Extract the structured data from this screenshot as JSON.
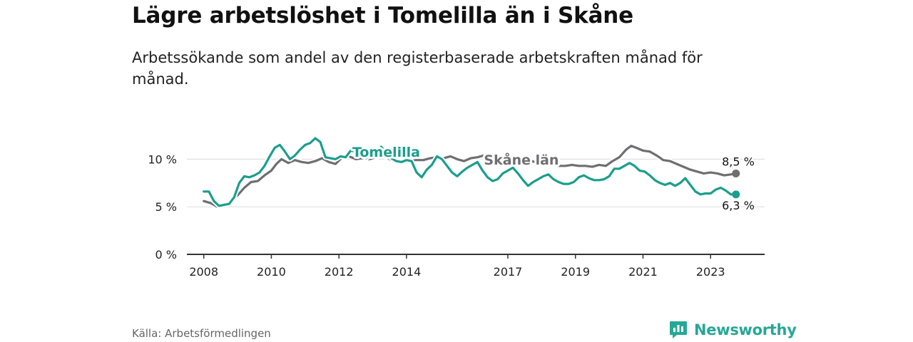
{
  "title": "Lägre arbetslöshet i Tomelilla än i Skåne",
  "subtitle": "Arbetssökande som andel av den registerbaserade arbetskraften månad för månad.",
  "source": "Källa: Arbetsförmedlingen",
  "brand": {
    "name": "Newsworthy",
    "icon": "newsworthy-logo-icon",
    "color": "#27a797"
  },
  "chart_data": {
    "type": "line",
    "title": "Lägre arbetslöshet i Tomelilla än i Skåne",
    "xlabel": "",
    "ylabel": "",
    "xlim": [
      2007.5,
      2024.6
    ],
    "ylim": [
      0,
      12.5
    ],
    "grid": true,
    "x_ticks": [
      {
        "value": 2008,
        "label": "2008"
      },
      {
        "value": 2010,
        "label": "2010"
      },
      {
        "value": 2012,
        "label": "2012"
      },
      {
        "value": 2014,
        "label": "2014"
      },
      {
        "value": 2017,
        "label": "2017"
      },
      {
        "value": 2019,
        "label": "2019"
      },
      {
        "value": 2021,
        "label": "2021"
      },
      {
        "value": 2023,
        "label": "2023"
      }
    ],
    "y_ticks": [
      {
        "value": 0,
        "label": "0 %"
      },
      {
        "value": 5,
        "label": "5 %"
      },
      {
        "value": 10,
        "label": "10 %"
      }
    ],
    "series": [
      {
        "name": "Skåne län",
        "color": "#6e6e73",
        "label_at": 2017.4,
        "end_label": "8,5 %",
        "points": [
          [
            2008.0,
            5.6
          ],
          [
            2008.2,
            5.4
          ],
          [
            2008.4,
            5.0
          ],
          [
            2008.6,
            5.2
          ],
          [
            2008.8,
            5.6
          ],
          [
            2009.0,
            6.2
          ],
          [
            2009.2,
            7.0
          ],
          [
            2009.4,
            7.6
          ],
          [
            2009.6,
            7.7
          ],
          [
            2009.8,
            8.3
          ],
          [
            2010.0,
            8.8
          ],
          [
            2010.15,
            9.5
          ],
          [
            2010.3,
            10.0
          ],
          [
            2010.5,
            9.6
          ],
          [
            2010.7,
            9.9
          ],
          [
            2010.9,
            9.7
          ],
          [
            2011.1,
            9.6
          ],
          [
            2011.3,
            9.8
          ],
          [
            2011.5,
            10.1
          ],
          [
            2011.7,
            9.7
          ],
          [
            2011.9,
            9.5
          ],
          [
            2012.1,
            10.2
          ],
          [
            2012.3,
            10.3
          ],
          [
            2012.5,
            10.0
          ],
          [
            2012.7,
            10.1
          ],
          [
            2012.9,
            10.0
          ],
          [
            2013.1,
            10.2
          ],
          [
            2013.3,
            10.4
          ],
          [
            2013.5,
            10.0
          ],
          [
            2013.7,
            9.7
          ],
          [
            2013.9,
            9.9
          ],
          [
            2014.1,
            9.9
          ],
          [
            2014.3,
            9.9
          ],
          [
            2014.5,
            9.9
          ],
          [
            2014.7,
            10.1
          ],
          [
            2014.9,
            10.2
          ],
          [
            2015.1,
            10.1
          ],
          [
            2015.3,
            10.3
          ],
          [
            2015.5,
            10.0
          ],
          [
            2015.7,
            9.8
          ],
          [
            2015.9,
            10.1
          ],
          [
            2016.1,
            10.2
          ],
          [
            2016.3,
            10.4
          ],
          [
            2016.5,
            10.2
          ],
          [
            2016.7,
            9.7
          ],
          [
            2016.9,
            9.9
          ],
          [
            2017.1,
            10.1
          ],
          [
            2017.3,
            10.0
          ],
          [
            2017.5,
            9.8
          ],
          [
            2017.7,
            9.8
          ],
          [
            2017.9,
            9.6
          ],
          [
            2018.1,
            9.7
          ],
          [
            2018.3,
            9.5
          ],
          [
            2018.5,
            9.3
          ],
          [
            2018.7,
            9.3
          ],
          [
            2018.9,
            9.4
          ],
          [
            2019.1,
            9.3
          ],
          [
            2019.3,
            9.3
          ],
          [
            2019.5,
            9.2
          ],
          [
            2019.7,
            9.4
          ],
          [
            2019.9,
            9.3
          ],
          [
            2020.1,
            9.8
          ],
          [
            2020.3,
            10.2
          ],
          [
            2020.5,
            11.0
          ],
          [
            2020.65,
            11.4
          ],
          [
            2020.8,
            11.2
          ],
          [
            2021.0,
            10.9
          ],
          [
            2021.2,
            10.8
          ],
          [
            2021.4,
            10.4
          ],
          [
            2021.6,
            9.9
          ],
          [
            2021.8,
            9.8
          ],
          [
            2022.0,
            9.5
          ],
          [
            2022.2,
            9.2
          ],
          [
            2022.4,
            8.9
          ],
          [
            2022.6,
            8.7
          ],
          [
            2022.8,
            8.5
          ],
          [
            2023.0,
            8.6
          ],
          [
            2023.2,
            8.5
          ],
          [
            2023.4,
            8.3
          ],
          [
            2023.6,
            8.4
          ],
          [
            2023.75,
            8.5
          ]
        ]
      },
      {
        "name": "Tomelilla",
        "color": "#1b9e8c",
        "label_at": 2013.4,
        "end_label": "6,3 %",
        "points": [
          [
            2008.0,
            6.6
          ],
          [
            2008.15,
            6.6
          ],
          [
            2008.3,
            5.6
          ],
          [
            2008.45,
            5.1
          ],
          [
            2008.6,
            5.2
          ],
          [
            2008.75,
            5.3
          ],
          [
            2008.9,
            6.0
          ],
          [
            2009.05,
            7.5
          ],
          [
            2009.2,
            8.2
          ],
          [
            2009.35,
            8.1
          ],
          [
            2009.5,
            8.3
          ],
          [
            2009.65,
            8.6
          ],
          [
            2009.8,
            9.3
          ],
          [
            2009.95,
            10.3
          ],
          [
            2010.1,
            11.2
          ],
          [
            2010.25,
            11.5
          ],
          [
            2010.4,
            10.8
          ],
          [
            2010.55,
            10.0
          ],
          [
            2010.7,
            10.4
          ],
          [
            2010.85,
            11.0
          ],
          [
            2011.0,
            11.5
          ],
          [
            2011.15,
            11.7
          ],
          [
            2011.3,
            12.2
          ],
          [
            2011.45,
            11.8
          ],
          [
            2011.6,
            10.2
          ],
          [
            2011.75,
            10.1
          ],
          [
            2011.9,
            10.0
          ],
          [
            2012.05,
            10.3
          ],
          [
            2012.2,
            10.2
          ],
          [
            2012.35,
            10.9
          ],
          [
            2012.5,
            10.8
          ],
          [
            2012.65,
            10.5
          ],
          [
            2012.8,
            10.1
          ],
          [
            2012.95,
            10.4
          ],
          [
            2013.1,
            10.6
          ],
          [
            2013.25,
            11.3
          ],
          [
            2013.4,
            10.7
          ],
          [
            2013.55,
            10.1
          ],
          [
            2013.7,
            9.8
          ],
          [
            2013.85,
            9.7
          ],
          [
            2014.0,
            9.9
          ],
          [
            2014.15,
            9.8
          ],
          [
            2014.3,
            8.6
          ],
          [
            2014.45,
            8.1
          ],
          [
            2014.6,
            8.9
          ],
          [
            2014.75,
            9.4
          ],
          [
            2014.9,
            10.3
          ],
          [
            2015.05,
            10.0
          ],
          [
            2015.2,
            9.3
          ],
          [
            2015.35,
            8.6
          ],
          [
            2015.5,
            8.2
          ],
          [
            2015.65,
            8.7
          ],
          [
            2015.8,
            9.1
          ],
          [
            2015.95,
            9.4
          ],
          [
            2016.1,
            9.7
          ],
          [
            2016.25,
            8.8
          ],
          [
            2016.4,
            8.1
          ],
          [
            2016.55,
            7.7
          ],
          [
            2016.7,
            7.9
          ],
          [
            2016.85,
            8.5
          ],
          [
            2017.0,
            8.8
          ],
          [
            2017.15,
            9.1
          ],
          [
            2017.3,
            8.5
          ],
          [
            2017.45,
            7.8
          ],
          [
            2017.6,
            7.2
          ],
          [
            2017.75,
            7.6
          ],
          [
            2017.9,
            7.9
          ],
          [
            2018.05,
            8.2
          ],
          [
            2018.2,
            8.4
          ],
          [
            2018.35,
            7.9
          ],
          [
            2018.5,
            7.6
          ],
          [
            2018.65,
            7.4
          ],
          [
            2018.8,
            7.4
          ],
          [
            2018.95,
            7.6
          ],
          [
            2019.1,
            8.1
          ],
          [
            2019.25,
            8.3
          ],
          [
            2019.4,
            8.0
          ],
          [
            2019.55,
            7.8
          ],
          [
            2019.7,
            7.8
          ],
          [
            2019.85,
            7.9
          ],
          [
            2020.0,
            8.2
          ],
          [
            2020.15,
            9.0
          ],
          [
            2020.3,
            9.0
          ],
          [
            2020.45,
            9.3
          ],
          [
            2020.6,
            9.6
          ],
          [
            2020.75,
            9.3
          ],
          [
            2020.9,
            8.8
          ],
          [
            2021.05,
            8.7
          ],
          [
            2021.2,
            8.3
          ],
          [
            2021.35,
            7.8
          ],
          [
            2021.5,
            7.5
          ],
          [
            2021.65,
            7.3
          ],
          [
            2021.8,
            7.5
          ],
          [
            2021.95,
            7.2
          ],
          [
            2022.1,
            7.5
          ],
          [
            2022.25,
            8.0
          ],
          [
            2022.4,
            7.3
          ],
          [
            2022.55,
            6.6
          ],
          [
            2022.7,
            6.3
          ],
          [
            2022.85,
            6.4
          ],
          [
            2023.0,
            6.4
          ],
          [
            2023.15,
            6.8
          ],
          [
            2023.3,
            7.0
          ],
          [
            2023.45,
            6.7
          ],
          [
            2023.6,
            6.3
          ],
          [
            2023.75,
            6.3
          ]
        ]
      }
    ]
  }
}
